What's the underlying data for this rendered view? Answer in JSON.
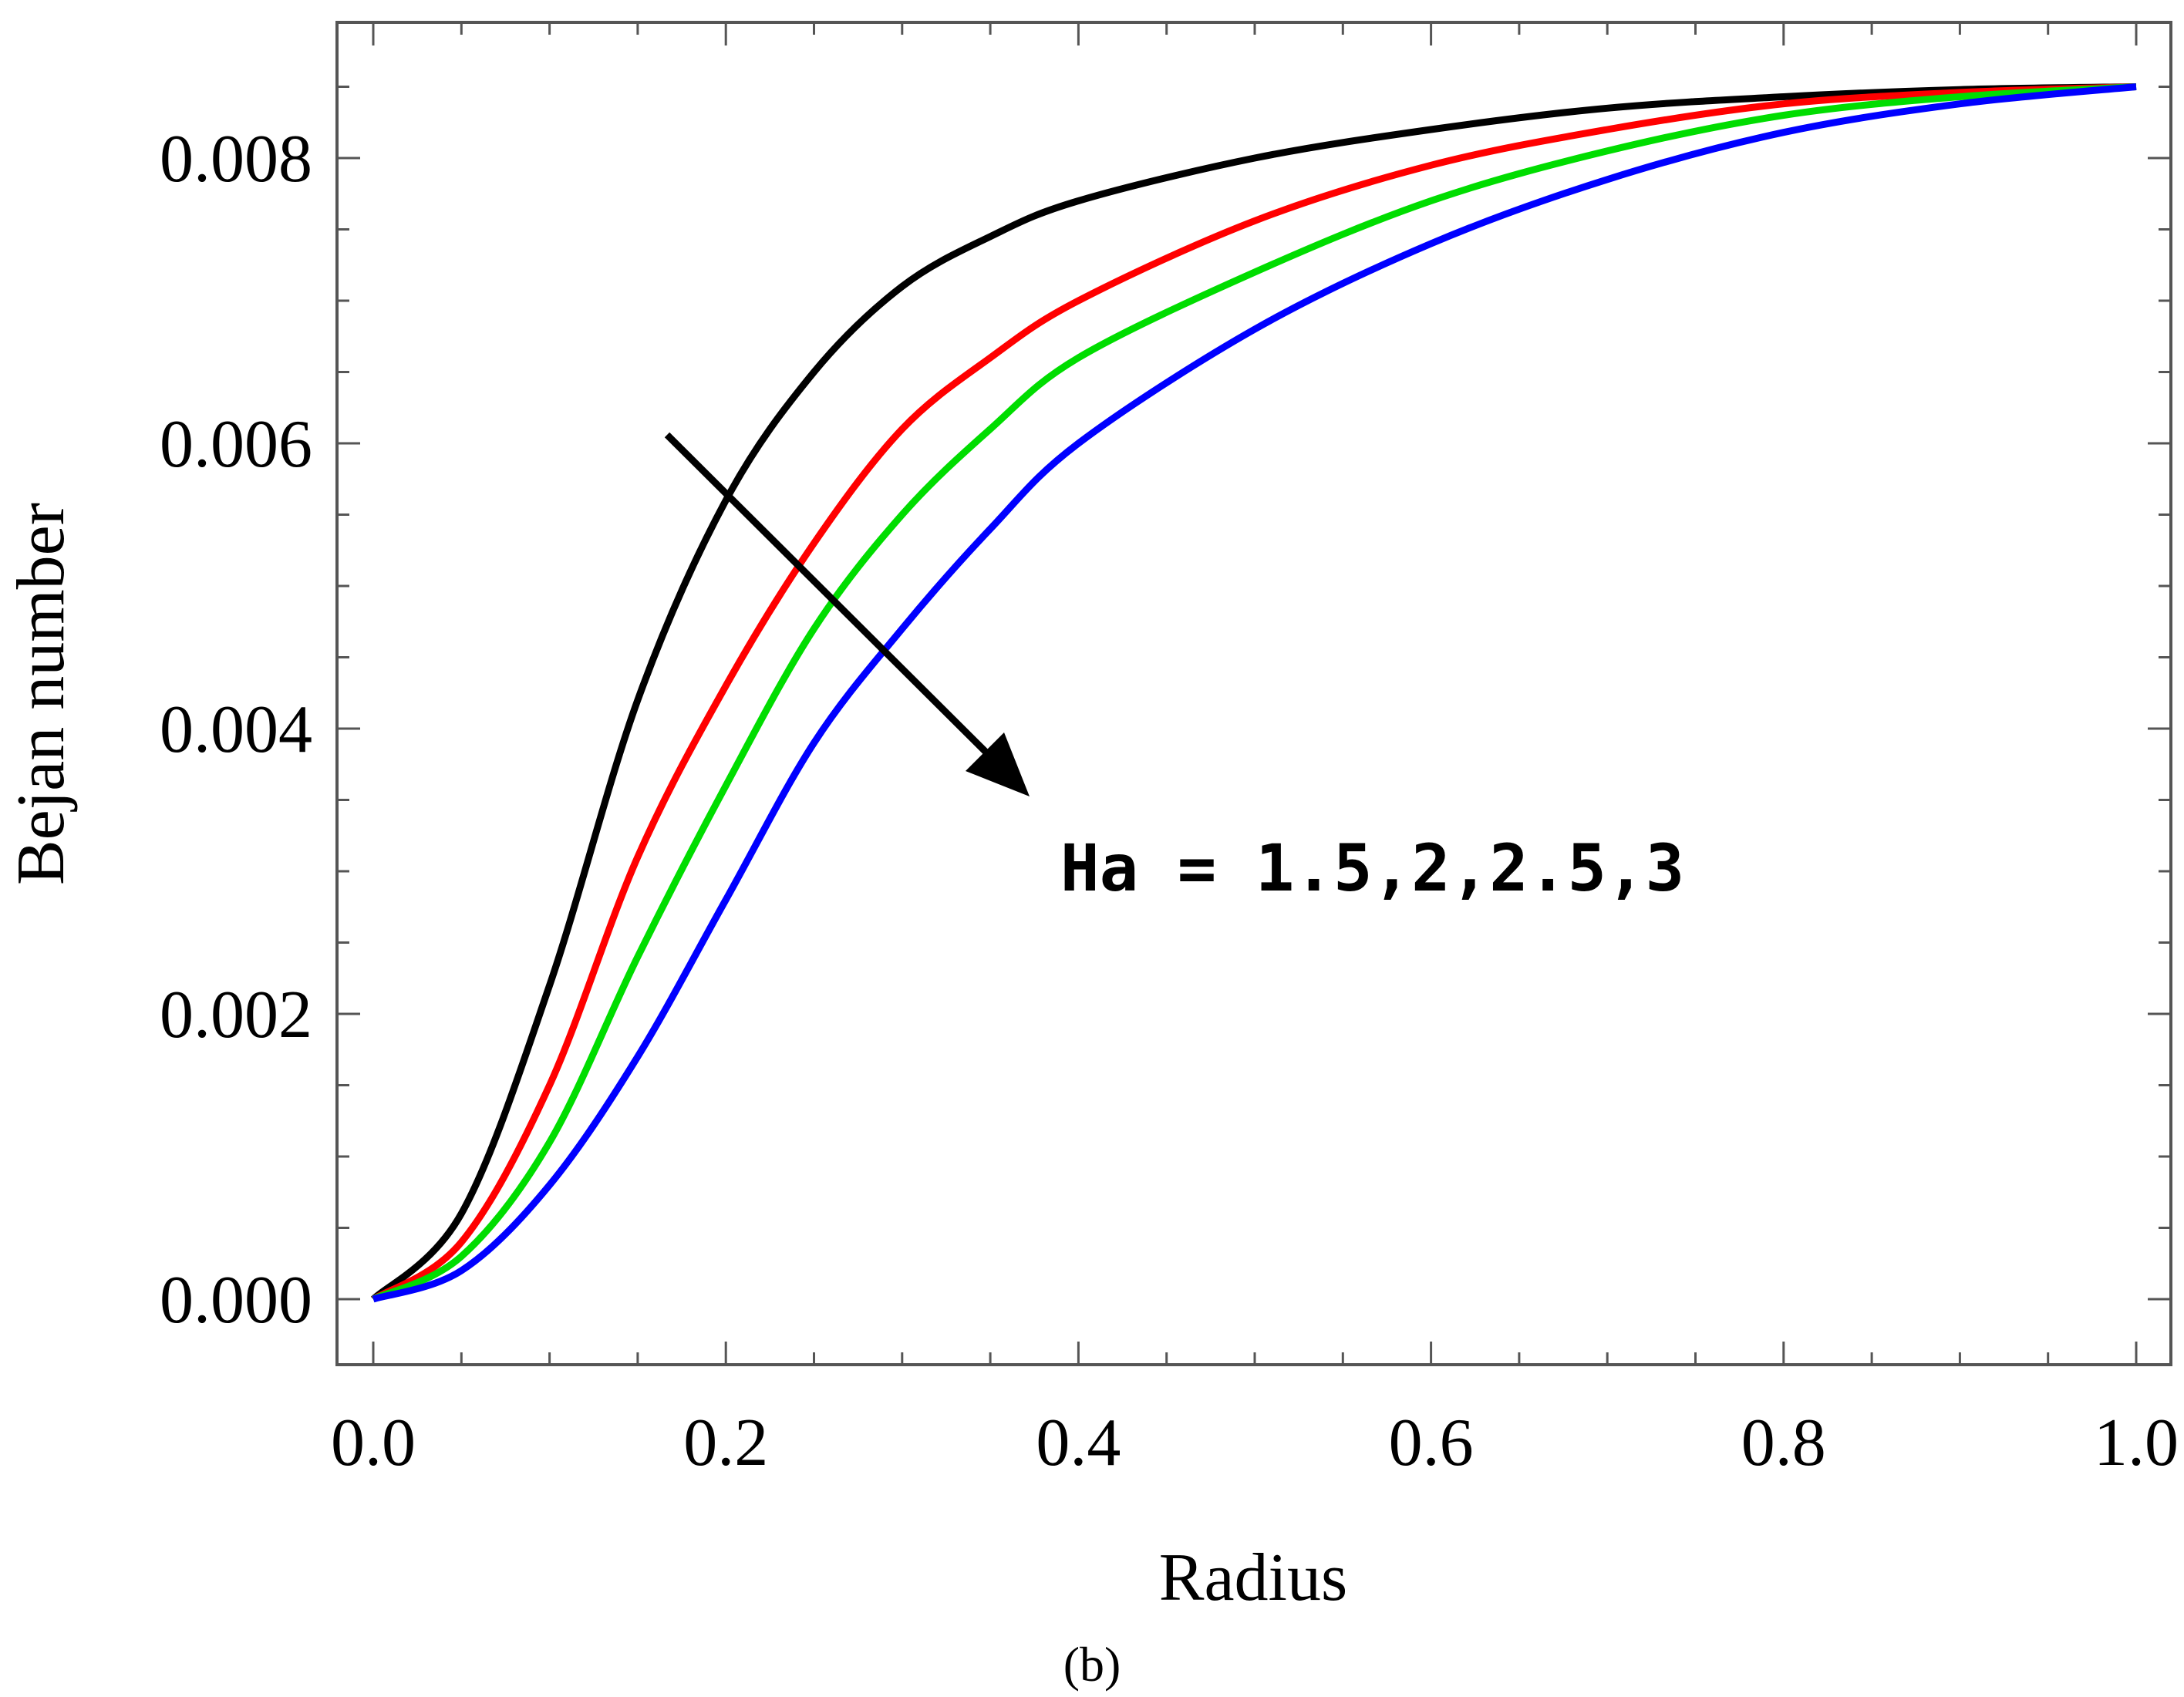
{
  "chart_data": {
    "type": "line",
    "xlabel": "Radius",
    "ylabel": "Bejan number",
    "xlim": [
      0.0,
      1.0
    ],
    "ylim": [
      -0.0005,
      0.0089
    ],
    "xticks": [
      0.0,
      0.2,
      0.4,
      0.6,
      0.8,
      1.0
    ],
    "xtick_labels": [
      "0.0",
      "0.2",
      "0.4",
      "0.6",
      "0.8",
      "1.0"
    ],
    "yticks": [
      0.0,
      0.002,
      0.004,
      0.006,
      0.008
    ],
    "ytick_labels": [
      "0.000",
      "0.002",
      "0.004",
      "0.006",
      "0.008"
    ],
    "grid": false,
    "annotation": "Ha = 1.5,2,2.5,3",
    "caption": "(b)",
    "x": [
      0.0,
      0.05,
      0.1,
      0.15,
      0.2,
      0.25,
      0.3,
      0.35,
      0.4,
      0.5,
      0.6,
      0.7,
      0.8,
      0.9,
      1.0
    ],
    "series": [
      {
        "color": "#000000",
        "values": [
          0.0,
          0.0006,
          0.0022,
          0.0042,
          0.0056,
          0.0065,
          0.0071,
          0.00745,
          0.0077,
          0.008,
          0.0082,
          0.00835,
          0.00843,
          0.00848,
          0.0085
        ]
      },
      {
        "color": "#ff0000",
        "values": [
          0.0,
          0.0004,
          0.0015,
          0.0031,
          0.0043,
          0.0053,
          0.0061,
          0.0066,
          0.007,
          0.00756,
          0.00795,
          0.0082,
          0.00838,
          0.00846,
          0.0085
        ]
      },
      {
        "color": "#00dd00",
        "values": [
          0.0,
          0.0003,
          0.0011,
          0.0024,
          0.0036,
          0.0047,
          0.0055,
          0.0061,
          0.0066,
          0.0072,
          0.0077,
          0.00805,
          0.0083,
          0.00843,
          0.0085
        ]
      },
      {
        "color": "#0000ff",
        "values": [
          0.0,
          0.0002,
          0.0008,
          0.0017,
          0.0028,
          0.0039,
          0.0047,
          0.0054,
          0.006,
          0.0068,
          0.0074,
          0.00785,
          0.00818,
          0.00838,
          0.0085
        ]
      }
    ]
  }
}
